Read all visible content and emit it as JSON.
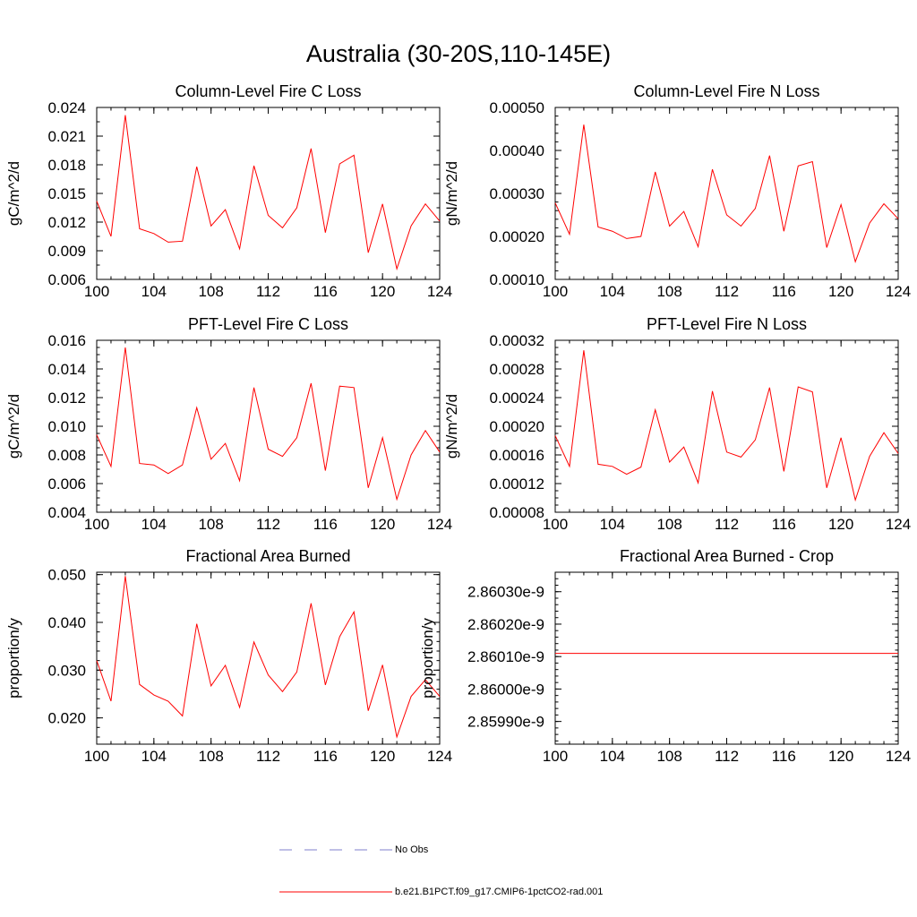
{
  "page": {
    "title": "Australia (30-20S,110-145E)"
  },
  "legend": {
    "items": [
      {
        "label": "No Obs",
        "color": "#7f7fcc",
        "style": "dashed"
      },
      {
        "label": "b.e21.B1PCT.f09_g17.CMIP6-1pctCO2-rad.001",
        "color": "#ff0000",
        "style": "solid"
      }
    ]
  },
  "chart_data": [
    {
      "type": "line",
      "title": "Column-Level Fire C Loss",
      "ylabel": "gC/m^2/d",
      "xlim": [
        100,
        124
      ],
      "ylim": [
        0.006,
        0.024
      ],
      "xticks": [
        100,
        104,
        108,
        112,
        116,
        120,
        124
      ],
      "xtick_labels": [
        "100",
        "104",
        "108",
        "112",
        "116",
        "120",
        "124"
      ],
      "yticks": [
        0.006,
        0.009,
        0.012,
        0.015,
        0.018,
        0.021,
        0.024
      ],
      "ytick_labels": [
        "0.006",
        "0.009",
        "0.012",
        "0.015",
        "0.018",
        "0.021",
        "0.024"
      ],
      "x_minor_step": 1,
      "y_minor_step": 0.0015,
      "series": [
        {
          "name": "b.e21.B1PCT.f09_g17.CMIP6-1pctCO2-rad.001",
          "color": "#ff0000",
          "x": [
            100,
            101,
            102,
            103,
            104,
            105,
            106,
            107,
            108,
            109,
            110,
            111,
            112,
            113,
            114,
            115,
            116,
            117,
            118,
            119,
            120,
            121,
            122,
            123,
            124
          ],
          "y": [
            0.0142,
            0.0105,
            0.0232,
            0.0113,
            0.0108,
            0.0099,
            0.01,
            0.0178,
            0.0116,
            0.0133,
            0.0092,
            0.0179,
            0.0127,
            0.0114,
            0.0135,
            0.0197,
            0.0109,
            0.0181,
            0.019,
            0.0088,
            0.0139,
            0.0071,
            0.0116,
            0.0139,
            0.0121
          ]
        }
      ]
    },
    {
      "type": "line",
      "title": "Column-Level Fire N Loss",
      "ylabel": "gN/m^2/d",
      "xlim": [
        100,
        124
      ],
      "ylim": [
        0.0001,
        0.0005
      ],
      "xticks": [
        100,
        104,
        108,
        112,
        116,
        120,
        124
      ],
      "xtick_labels": [
        "100",
        "104",
        "108",
        "112",
        "116",
        "120",
        "124"
      ],
      "yticks": [
        0.0001,
        0.0002,
        0.0003,
        0.0004,
        0.0005
      ],
      "ytick_labels": [
        "0.00010",
        "0.00020",
        "0.00030",
        "0.00040",
        "0.00050"
      ],
      "x_minor_step": 1,
      "y_minor_step": 2e-05,
      "series": [
        {
          "name": "b.e21.B1PCT.f09_g17.CMIP6-1pctCO2-rad.001",
          "color": "#ff0000",
          "x": [
            100,
            101,
            102,
            103,
            104,
            105,
            106,
            107,
            108,
            109,
            110,
            111,
            112,
            113,
            114,
            115,
            116,
            117,
            118,
            119,
            120,
            121,
            122,
            123,
            124
          ],
          "y": [
            0.000278,
            0.000205,
            0.00046,
            0.000222,
            0.000212,
            0.000195,
            0.0002,
            0.00035,
            0.000224,
            0.000258,
            0.000176,
            0.000356,
            0.00025,
            0.000224,
            0.000265,
            0.000388,
            0.000212,
            0.000364,
            0.000374,
            0.000174,
            0.000274,
            0.000141,
            0.000231,
            0.000276,
            0.000241
          ]
        }
      ]
    },
    {
      "type": "line",
      "title": "PFT-Level Fire C Loss",
      "ylabel": "gC/m^2/d",
      "xlim": [
        100,
        124
      ],
      "ylim": [
        0.004,
        0.016
      ],
      "xticks": [
        100,
        104,
        108,
        112,
        116,
        120,
        124
      ],
      "xtick_labels": [
        "100",
        "104",
        "108",
        "112",
        "116",
        "120",
        "124"
      ],
      "yticks": [
        0.004,
        0.006,
        0.008,
        0.01,
        0.012,
        0.014,
        0.016
      ],
      "ytick_labels": [
        "0.004",
        "0.006",
        "0.008",
        "0.010",
        "0.012",
        "0.014",
        "0.016"
      ],
      "x_minor_step": 1,
      "y_minor_step": 0.0005,
      "series": [
        {
          "name": "b.e21.B1PCT.f09_g17.CMIP6-1pctCO2-rad.001",
          "color": "#ff0000",
          "x": [
            100,
            101,
            102,
            103,
            104,
            105,
            106,
            107,
            108,
            109,
            110,
            111,
            112,
            113,
            114,
            115,
            116,
            117,
            118,
            119,
            120,
            121,
            122,
            123,
            124
          ],
          "y": [
            0.0094,
            0.0072,
            0.0155,
            0.0074,
            0.0073,
            0.0067,
            0.0073,
            0.0113,
            0.0077,
            0.0088,
            0.0062,
            0.0127,
            0.0084,
            0.0079,
            0.0092,
            0.013,
            0.0069,
            0.0128,
            0.0127,
            0.0057,
            0.0092,
            0.0049,
            0.008,
            0.0097,
            0.0082
          ]
        }
      ]
    },
    {
      "type": "line",
      "title": "PFT-Level Fire N Loss",
      "ylabel": "gN/m^2/d",
      "xlim": [
        100,
        124
      ],
      "ylim": [
        8e-05,
        0.00032
      ],
      "xticks": [
        100,
        104,
        108,
        112,
        116,
        120,
        124
      ],
      "xtick_labels": [
        "100",
        "104",
        "108",
        "112",
        "116",
        "120",
        "124"
      ],
      "yticks": [
        8e-05,
        0.00012,
        0.00016,
        0.0002,
        0.00024,
        0.00028,
        0.00032
      ],
      "ytick_labels": [
        "0.00008",
        "0.00012",
        "0.00016",
        "0.00020",
        "0.00024",
        "0.00028",
        "0.00032"
      ],
      "x_minor_step": 1,
      "y_minor_step": 1e-05,
      "series": [
        {
          "name": "b.e21.B1PCT.f09_g17.CMIP6-1pctCO2-rad.001",
          "color": "#ff0000",
          "x": [
            100,
            101,
            102,
            103,
            104,
            105,
            106,
            107,
            108,
            109,
            110,
            111,
            112,
            113,
            114,
            115,
            116,
            117,
            118,
            119,
            120,
            121,
            122,
            123,
            124
          ],
          "y": [
            0.000187,
            0.000144,
            0.000306,
            0.000147,
            0.000144,
            0.000133,
            0.000143,
            0.000223,
            0.00015,
            0.000171,
            0.000121,
            0.000249,
            0.000164,
            0.000157,
            0.000181,
            0.000254,
            0.000137,
            0.000255,
            0.000248,
            0.000114,
            0.000184,
            9.7e-05,
            0.000158,
            0.000191,
            0.000162
          ]
        }
      ]
    },
    {
      "type": "line",
      "title": "Fractional Area Burned",
      "ylabel": "proportion/y",
      "xlim": [
        100,
        124
      ],
      "ylim": [
        0.0145,
        0.0505
      ],
      "xticks": [
        100,
        104,
        108,
        112,
        116,
        120,
        124
      ],
      "xtick_labels": [
        "100",
        "104",
        "108",
        "112",
        "116",
        "120",
        "124"
      ],
      "yticks": [
        0.02,
        0.03,
        0.04,
        0.05
      ],
      "ytick_labels": [
        "0.020",
        "0.030",
        "0.040",
        "0.050"
      ],
      "x_minor_step": 1,
      "y_minor_step": 0.002,
      "series": [
        {
          "name": "b.e21.B1PCT.f09_g17.CMIP6-1pctCO2-rad.001",
          "color": "#ff0000",
          "x": [
            100,
            101,
            102,
            103,
            104,
            105,
            106,
            107,
            108,
            109,
            110,
            111,
            112,
            113,
            114,
            115,
            116,
            117,
            118,
            119,
            120,
            121,
            122,
            123,
            124
          ],
          "y": [
            0.032,
            0.0235,
            0.0497,
            0.027,
            0.0248,
            0.0235,
            0.0204,
            0.0397,
            0.0267,
            0.031,
            0.0222,
            0.0359,
            0.029,
            0.0255,
            0.0296,
            0.044,
            0.0269,
            0.037,
            0.0422,
            0.0215,
            0.0311,
            0.016,
            0.0245,
            0.028,
            0.0245
          ]
        }
      ]
    },
    {
      "type": "line",
      "title": "Fractional Area Burned - Crop",
      "ylabel": "proportion/y",
      "xlim": [
        100,
        124
      ],
      "ylim": [
        2.85983e-09,
        2.86036e-09
      ],
      "xticks": [
        100,
        104,
        108,
        112,
        116,
        120,
        124
      ],
      "xtick_labels": [
        "100",
        "104",
        "108",
        "112",
        "116",
        "120",
        "124"
      ],
      "yticks": [
        2.8599e-09,
        2.86e-09,
        2.8601e-09,
        2.8602e-09,
        2.8603e-09
      ],
      "ytick_labels": [
        "2.85990e-9",
        "2.86000e-9",
        "2.86010e-9",
        "2.86020e-9",
        "2.86030e-9"
      ],
      "x_minor_step": 1,
      "y_minor_step": 2e-14,
      "series": [
        {
          "name": "b.e21.B1PCT.f09_g17.CMIP6-1pctCO2-rad.001",
          "color": "#ff0000",
          "x": [
            100,
            124
          ],
          "y": [
            2.86011e-09,
            2.86011e-09
          ]
        }
      ]
    }
  ]
}
